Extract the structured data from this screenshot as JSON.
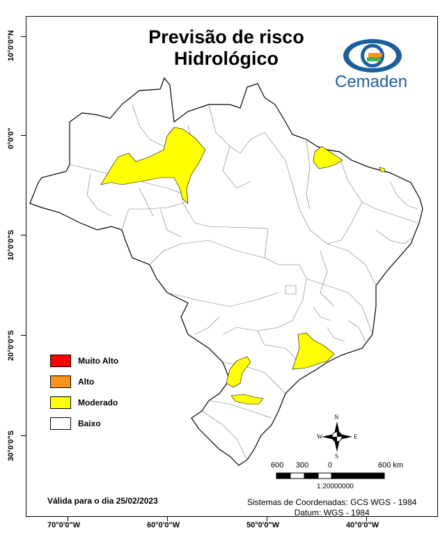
{
  "map": {
    "title_line1": "Previsão de risco",
    "title_line2": "Hidrológico",
    "logo_text": "Cemaden",
    "lat_labels": [
      "10°0'0\"N",
      "0°0'0\"",
      "10°0'0\"S",
      "20°0'0\"S",
      "30°0'0\"S"
    ],
    "lon_labels": [
      "70°0'0\"W",
      "60°0'0\"W",
      "50°0'0\"W",
      "40°0'0\"W"
    ],
    "legend": [
      {
        "label": "Muito Alto",
        "color": "#ff0000"
      },
      {
        "label": "Alto",
        "color": "#f7941d"
      },
      {
        "label": "Moderado",
        "color": "#ffff00"
      },
      {
        "label": "Baixo",
        "color": "#ffffff"
      }
    ],
    "valid_text": "Válida para o dia 25/02/2023",
    "coord_line1": "Sistemas de Coordenadas: GCS WGS - 1984",
    "coord_line2": "Datum: WGS - 1984",
    "scale_labels": [
      "600",
      "300",
      "0",
      "600 km"
    ],
    "scale_ratio": "1:20000000",
    "compass": {
      "n": "N",
      "s": "S",
      "e": "E",
      "w": "W"
    }
  }
}
